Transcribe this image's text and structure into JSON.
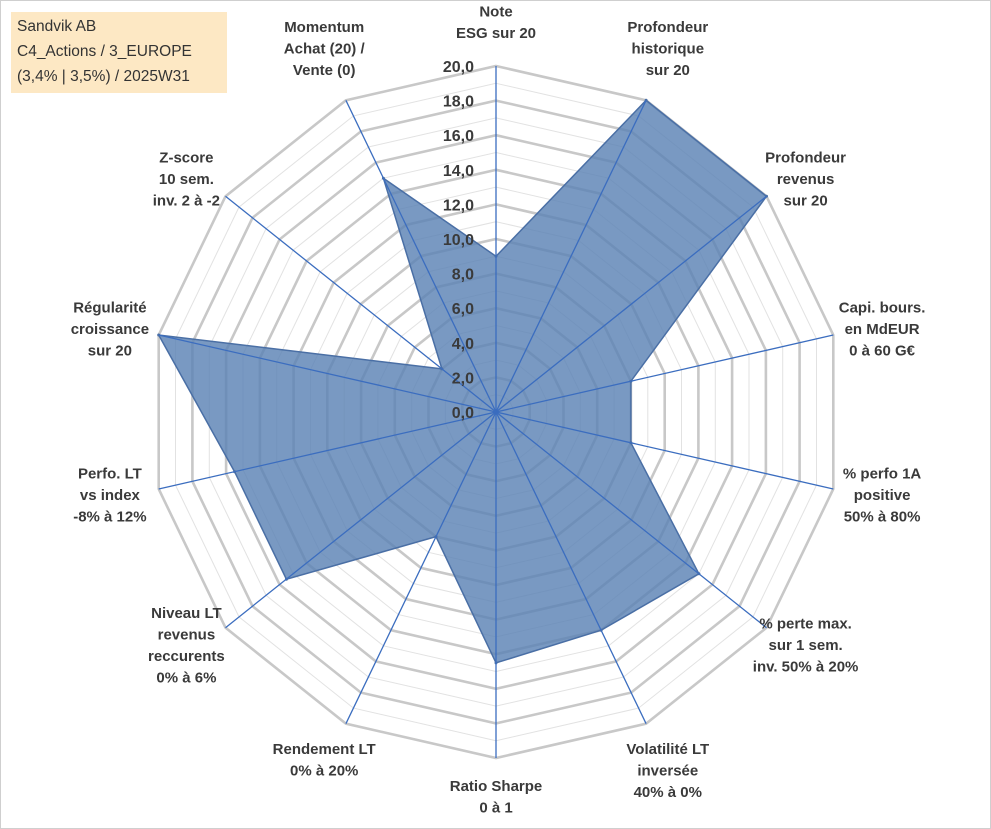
{
  "info_box": {
    "line1": "Sandvik AB",
    "line2": "C4_Actions / 3_EUROPE",
    "line3": "(3,4% | 3,5%) / 2025W31"
  },
  "chart_data": {
    "type": "radar",
    "title": "",
    "rmax": 20,
    "tick_step": 2,
    "tick_labels": [
      "0,0",
      "2,0",
      "4,0",
      "6,0",
      "8,0",
      "10,0",
      "12,0",
      "14,0",
      "16,0",
      "18,0",
      "20,0"
    ],
    "grid": true,
    "legend": "none",
    "axes": [
      {
        "label": [
          "Note",
          "ESG sur 20"
        ],
        "value": 9.0
      },
      {
        "label": [
          "Profondeur",
          "historique",
          "sur 20"
        ],
        "value": 20.0
      },
      {
        "label": [
          "Profondeur",
          "revenus",
          "sur 20"
        ],
        "value": 20.0
      },
      {
        "label": [
          "Capi. bours.",
          "en MdEUR",
          "0 à 60 G€"
        ],
        "value": 8.0
      },
      {
        "label": [
          "% perfo 1A",
          "positive",
          "50% à 80%"
        ],
        "value": 8.0
      },
      {
        "label": [
          "% perte max.",
          "sur 1 sem.",
          "inv. 50% à 20%"
        ],
        "value": 15.0
      },
      {
        "label": [
          "Volatilité LT",
          "inversée",
          "40% à 0%"
        ],
        "value": 14.0
      },
      {
        "label": [
          "Ratio Sharpe",
          "0 à 1"
        ],
        "value": 14.5
      },
      {
        "label": [
          "Rendement LT",
          "0% à 20%"
        ],
        "value": 8.0
      },
      {
        "label": [
          "Niveau LT",
          "revenus",
          "reccurents",
          "0% à 6%"
        ],
        "value": 15.5
      },
      {
        "label": [
          "Perfo. LT",
          "vs index",
          "-8% à 12%"
        ],
        "value": 15.5
      },
      {
        "label": [
          "Régularité",
          "croissance",
          "sur 20"
        ],
        "value": 20.0
      },
      {
        "label": [
          "Z-score",
          "10 sem.",
          "inv. 2 à -2"
        ],
        "value": 4.0
      },
      {
        "label": [
          "Momentum",
          "Achat (20) /",
          "Vente (0)"
        ],
        "value": 15.0
      }
    ],
    "colors": {
      "fill": "#5b82b5",
      "stroke": "#4a6fa5",
      "axis": "#3b6dbf",
      "grid": "#c8c8c8"
    }
  }
}
